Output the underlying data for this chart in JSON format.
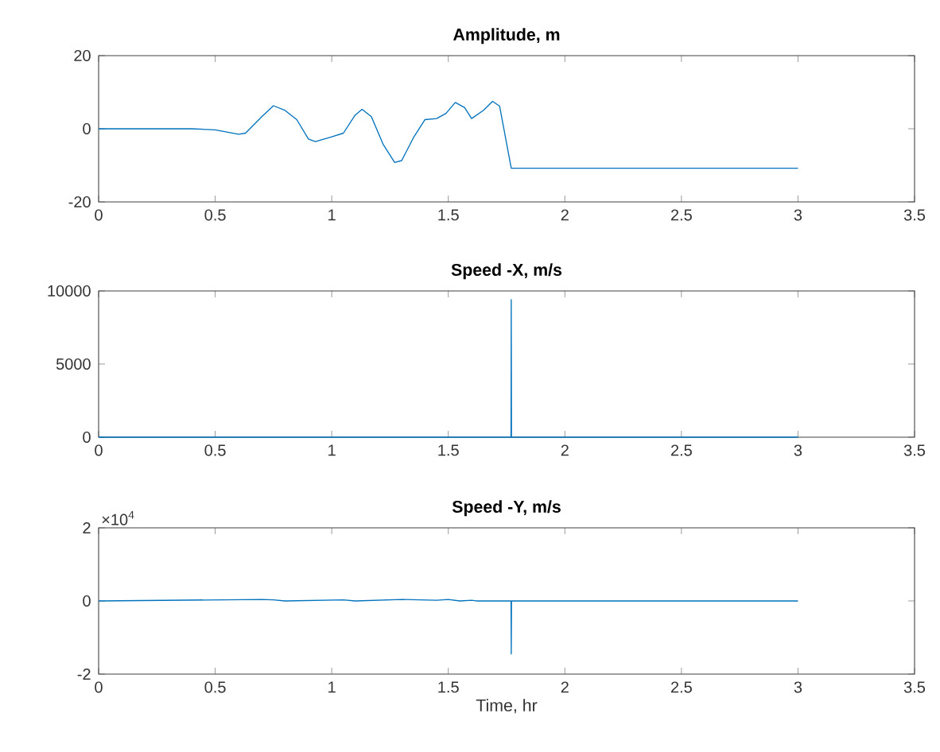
{
  "chart_data": [
    {
      "type": "line",
      "title": "Amplitude, m",
      "color": "#0072bd",
      "x": [
        0,
        0.4,
        0.5,
        0.6,
        0.63,
        0.7,
        0.75,
        0.8,
        0.85,
        0.9,
        0.93,
        1.0,
        1.05,
        1.1,
        1.13,
        1.17,
        1.22,
        1.27,
        1.3,
        1.35,
        1.4,
        1.45,
        1.49,
        1.53,
        1.57,
        1.6,
        1.65,
        1.69,
        1.72,
        1.77,
        3.0
      ],
      "values": [
        0,
        0,
        -0.3,
        -1.5,
        -1.2,
        3.3,
        6.3,
        5,
        2.5,
        -2.8,
        -3.5,
        -2.2,
        -1.2,
        3.7,
        5.3,
        3.3,
        -4.2,
        -9.2,
        -8.7,
        -2.5,
        2.5,
        2.8,
        4.2,
        7.2,
        5.8,
        2.8,
        5,
        7.5,
        6.2,
        -10.8,
        -10.8
      ],
      "xlim": [
        0,
        3.5
      ],
      "xticks": [
        0,
        0.5,
        1,
        1.5,
        2,
        2.5,
        3,
        3.5
      ],
      "ylim": [
        -20,
        20
      ],
      "yticks": [
        -20,
        0,
        20
      ]
    },
    {
      "type": "line",
      "title": "Speed -X, m/s",
      "color": "#0072bd",
      "x": [
        0,
        1.769,
        1.77,
        1.771,
        3.0
      ],
      "values": [
        0,
        0,
        9400,
        0,
        0
      ],
      "xlim": [
        0,
        3.5
      ],
      "xticks": [
        0,
        0.5,
        1,
        1.5,
        2,
        2.5,
        3,
        3.5
      ],
      "ylim": [
        0,
        10000
      ],
      "yticks": [
        0,
        5000,
        10000
      ]
    },
    {
      "type": "line",
      "title": "Speed -Y, m/s",
      "xlabel": "Time, hr",
      "color": "#0072bd",
      "x": [
        0,
        0.7,
        0.75,
        0.8,
        1.05,
        1.1,
        1.3,
        1.45,
        1.5,
        1.55,
        1.6,
        1.62,
        1.769,
        1.77,
        1.771,
        3.0
      ],
      "values": [
        0,
        0.04,
        0.03,
        0,
        0.03,
        0,
        0.04,
        0.02,
        0.04,
        0,
        0.02,
        0,
        0,
        -1.45,
        0,
        0
      ],
      "xlim": [
        0,
        3.5
      ],
      "xticks": [
        0,
        0.5,
        1,
        1.5,
        2,
        2.5,
        3,
        3.5
      ],
      "ylim": [
        -2,
        2
      ],
      "yticks": [
        -2,
        0,
        2
      ],
      "annotations": [
        "×10$^{4}$"
      ]
    }
  ]
}
